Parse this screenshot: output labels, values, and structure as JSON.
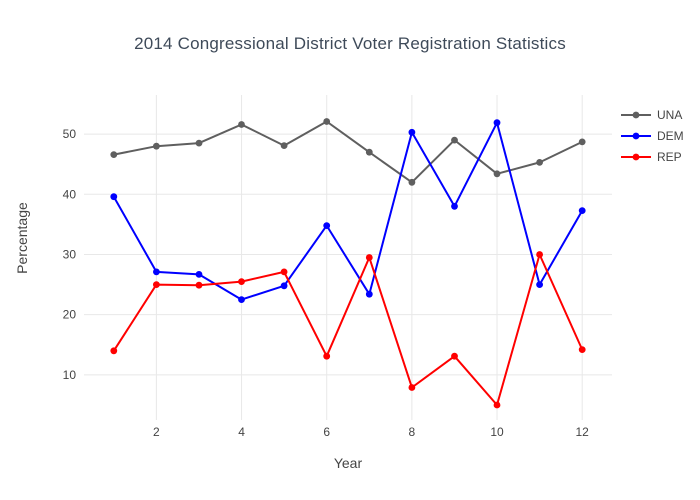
{
  "title": "2014 Congressional District Voter Registration Statistics",
  "axis": {
    "xlabel": "Year",
    "ylabel": "Percentage"
  },
  "colors": {
    "title": "#3e4a59",
    "tick_text": "#444444",
    "grid": "#e8e8e8",
    "background": "#ffffff"
  },
  "chart_data": {
    "type": "line",
    "title": "2014 Congressional District Voter Registration Statistics",
    "xlabel": "Year",
    "ylabel": "Percentage",
    "x": [
      1,
      2,
      3,
      4,
      5,
      6,
      7,
      8,
      9,
      10,
      11,
      12
    ],
    "series": [
      {
        "name": "UNA",
        "color": "#5f5f5f",
        "values": [
          46.6,
          48.0,
          48.5,
          51.6,
          48.1,
          52.1,
          47.0,
          42.0,
          49.0,
          43.4,
          45.3,
          48.7
        ]
      },
      {
        "name": "DEM",
        "color": "#0000ff",
        "values": [
          39.6,
          27.1,
          26.7,
          22.5,
          24.8,
          34.8,
          23.4,
          50.3,
          38.0,
          51.9,
          25.0,
          37.3
        ]
      },
      {
        "name": "REP",
        "color": "#ff0000",
        "values": [
          14.0,
          25.0,
          24.9,
          25.5,
          27.1,
          13.1,
          29.5,
          7.9,
          13.1,
          5.0,
          30.0,
          14.2
        ]
      }
    ],
    "xticks": [
      2,
      4,
      6,
      8,
      10,
      12
    ],
    "yticks": [
      10,
      20,
      30,
      40,
      50
    ],
    "xlim": [
      0.3,
      12.7
    ],
    "ylim": [
      2.5,
      56.5
    ],
    "grid": true,
    "legend_position": "right",
    "marker": "circle",
    "line_width": 2
  }
}
